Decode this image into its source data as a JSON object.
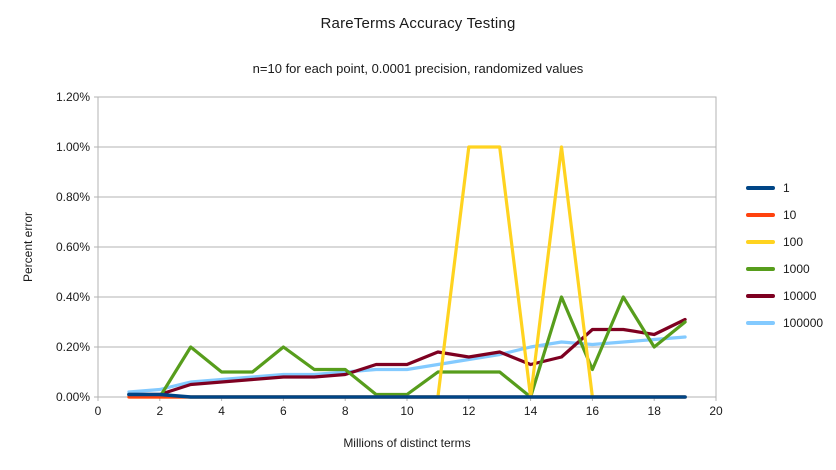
{
  "chart_data": {
    "type": "line",
    "title": "RareTerms Accuracy Testing",
    "subtitle": "n=10 for each point, 0.0001 precision, randomized values",
    "xlabel": "Millions of distinct terms",
    "ylabel": "Percent error",
    "xlim": [
      0,
      20
    ],
    "ylim": [
      0,
      1.2
    ],
    "y_unit": "percent",
    "grid": "horizontal-only",
    "legend_position": "right",
    "x_ticks": {
      "values": [
        0,
        2,
        4,
        6,
        8,
        10,
        12,
        14,
        16,
        18,
        20
      ],
      "labels": [
        "0",
        "2",
        "4",
        "6",
        "8",
        "10",
        "12",
        "14",
        "16",
        "18",
        "20"
      ]
    },
    "y_ticks": {
      "values": [
        0,
        0.2,
        0.4,
        0.6,
        0.8,
        1.0,
        1.2
      ],
      "labels": [
        "0.00%",
        "0.20%",
        "0.40%",
        "0.60%",
        "0.80%",
        "1.00%",
        "1.20%"
      ]
    },
    "x": [
      1,
      2,
      3,
      4,
      5,
      6,
      7,
      8,
      9,
      10,
      11,
      12,
      13,
      14,
      15,
      16,
      17,
      18,
      19
    ],
    "series": [
      {
        "name": "1",
        "color": "#004586",
        "values": [
          0.01,
          0.01,
          0.0,
          0.0,
          0.0,
          0.0,
          0.0,
          0.0,
          0.0,
          0.0,
          0.0,
          0.0,
          0.0,
          0.0,
          0.0,
          0.0,
          0.0,
          0.0,
          0.0
        ]
      },
      {
        "name": "10",
        "color": "#FF420E",
        "values": [
          0.0,
          0.0,
          0.0,
          0.0,
          0.0,
          0.0,
          0.0,
          0.0,
          0.0,
          0.0,
          0.0,
          0.0,
          0.0,
          0.0,
          0.0,
          0.0,
          0.0,
          0.0,
          0.0
        ]
      },
      {
        "name": "100",
        "color": "#FFD320",
        "values": [
          0.0,
          0.0,
          0.0,
          0.0,
          0.0,
          0.0,
          0.0,
          0.0,
          0.0,
          0.0,
          0.0,
          1.0,
          1.0,
          0.0,
          1.0,
          0.0,
          0.0,
          0.0,
          0.0
        ]
      },
      {
        "name": "1000",
        "color": "#579D1C",
        "values": [
          0.01,
          0.0,
          0.2,
          0.1,
          0.1,
          0.2,
          0.11,
          0.11,
          0.01,
          0.01,
          0.1,
          0.1,
          0.1,
          0.0,
          0.4,
          0.11,
          0.4,
          0.2,
          0.3
        ]
      },
      {
        "name": "10000",
        "color": "#7E0021",
        "values": [
          0.01,
          0.01,
          0.05,
          0.06,
          0.07,
          0.08,
          0.08,
          0.09,
          0.13,
          0.13,
          0.18,
          0.16,
          0.18,
          0.13,
          0.16,
          0.27,
          0.27,
          0.25,
          0.31
        ]
      },
      {
        "name": "100000",
        "color": "#83CAFF",
        "values": [
          0.02,
          0.03,
          0.06,
          0.07,
          0.08,
          0.09,
          0.09,
          0.1,
          0.11,
          0.11,
          0.13,
          0.15,
          0.17,
          0.2,
          0.22,
          0.21,
          0.22,
          0.23,
          0.24
        ]
      }
    ],
    "draw_order": [
      "100000",
      "10000",
      "1000",
      "100",
      "10",
      "1"
    ],
    "legend_order": [
      "1",
      "10",
      "100",
      "1000",
      "10000",
      "100000"
    ],
    "style": {
      "grid_color": "#b3b3b3",
      "axis_color": "#b3b3b3",
      "text_color": "#1a1a1a",
      "background": "#ffffff"
    }
  }
}
